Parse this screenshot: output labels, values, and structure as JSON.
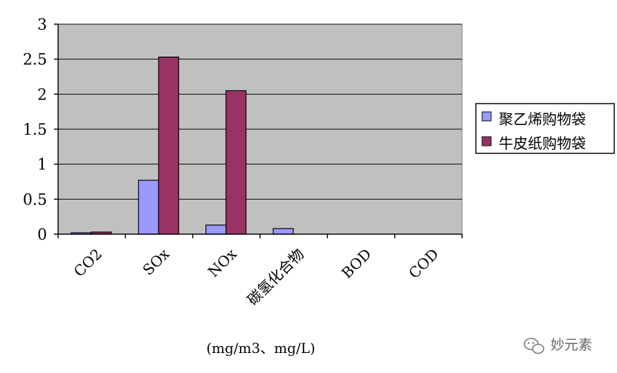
{
  "chart_data": {
    "type": "bar",
    "categories": [
      "CO2",
      "SOx",
      "NOx",
      "碳氢化合物",
      "BOD",
      "COD"
    ],
    "series": [
      {
        "name": "聚乙烯购物袋",
        "color": "#9999ff",
        "values": [
          0.02,
          0.77,
          0.13,
          0.08,
          0,
          0
        ]
      },
      {
        "name": "牛皮纸购物袋",
        "color": "#993366",
        "values": [
          0.03,
          2.53,
          2.05,
          0,
          0,
          0
        ]
      }
    ],
    "yticks": [
      "0",
      "0.5",
      "1",
      "1.5",
      "2",
      "2.5",
      "3"
    ],
    "ylim": [
      0,
      3
    ],
    "xlabel": "(mg/m3、mg/L)",
    "plot_background": "#c0c0c0",
    "grid": true,
    "legend_position": "right"
  },
  "watermark": {
    "text": "妙元素",
    "icon": "wechat-icon"
  }
}
